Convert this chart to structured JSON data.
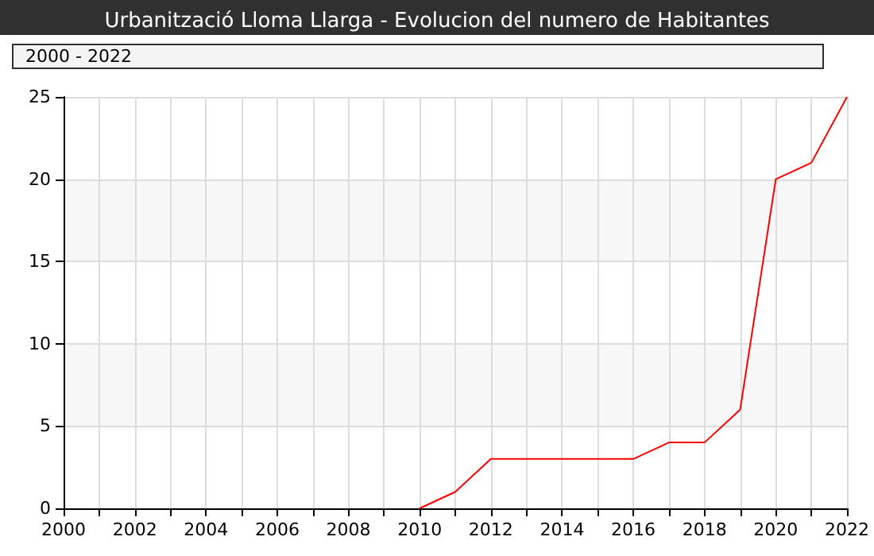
{
  "chart_data": {
    "type": "line",
    "title": "Urbanització Lloma Llarga - Evolucion del numero de Habitantes",
    "subtitle": "2000 - 2022",
    "x": [
      2010,
      2011,
      2012,
      2013,
      2014,
      2015,
      2016,
      2017,
      2018,
      2019,
      2020,
      2021,
      2022
    ],
    "series": [
      {
        "color": "#ff0000",
        "values": [
          0,
          1,
          3,
          3,
          3,
          3,
          3,
          4,
          4,
          6,
          20,
          21,
          25
        ]
      }
    ],
    "xlim": [
      2000,
      2022
    ],
    "xticks": [
      2000,
      {
        "value": 2001,
        "label": null
      },
      2002,
      {
        "value": 2003,
        "label": null
      },
      2004,
      {
        "value": 2005,
        "label": null
      },
      2006,
      {
        "value": 2007,
        "label": null
      },
      2008,
      {
        "value": 2009,
        "label": null
      },
      2010,
      {
        "value": 2011,
        "label": null
      },
      2012,
      {
        "value": 2013,
        "label": null
      },
      2014,
      {
        "value": 2015,
        "label": null
      },
      2016,
      {
        "value": 2017,
        "label": null
      },
      2018,
      {
        "value": 2019,
        "label": null
      },
      2020,
      {
        "value": 2021,
        "label": null
      },
      2022
    ],
    "ylim": [
      0,
      25
    ],
    "yticks": [
      0,
      5,
      10,
      15,
      20,
      25
    ],
    "grid": true,
    "marker": "none",
    "line_style": "solid"
  }
}
